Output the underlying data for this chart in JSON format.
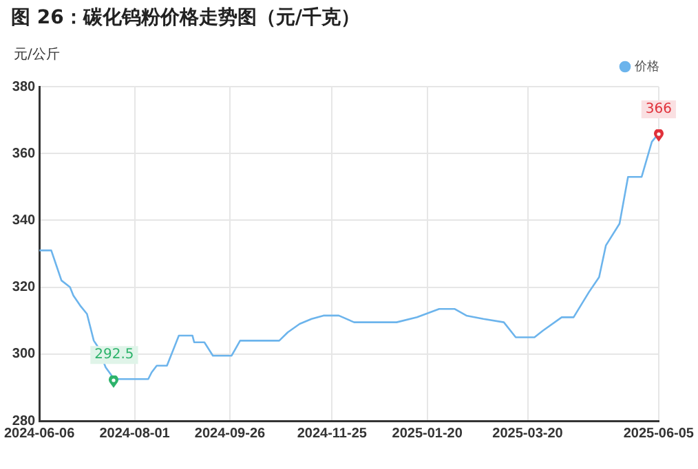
{
  "chart_data": {
    "type": "line",
    "title": "图 26：碳化钨粉价格走势图（元/千克）",
    "ylabel": "元/公斤",
    "x": [
      "2024-06-06",
      "2024-06-13",
      "2024-06-16",
      "2024-06-19",
      "2024-06-24",
      "2024-06-26",
      "2024-06-30",
      "2024-07-04",
      "2024-07-08",
      "2024-07-10",
      "2024-07-15",
      "2024-07-20",
      "2024-08-09",
      "2024-08-11",
      "2024-08-14",
      "2024-08-20",
      "2024-08-27",
      "2024-09-04",
      "2024-09-05",
      "2024-09-11",
      "2024-09-16",
      "2024-09-27",
      "2024-10-02",
      "2024-10-25",
      "2024-10-30",
      "2024-11-06",
      "2024-11-13",
      "2024-11-20",
      "2024-11-29",
      "2024-12-08",
      "2025-01-02",
      "2025-01-14",
      "2025-01-27",
      "2025-02-05",
      "2025-02-12",
      "2025-02-22",
      "2025-03-06",
      "2025-03-13",
      "2025-03-24",
      "2025-03-29",
      "2025-04-09",
      "2025-04-16",
      "2025-04-25",
      "2025-05-01",
      "2025-05-05",
      "2025-05-13",
      "2025-05-18",
      "2025-05-26",
      "2025-06-01",
      "2025-06-05"
    ],
    "series": [
      {
        "name": "价格",
        "color": "#6cb4ec",
        "values": [
          331,
          331,
          326.5,
          322,
          320,
          317.5,
          314.5,
          312,
          304,
          302.5,
          296,
          292.5,
          292.5,
          294.5,
          296.5,
          296.5,
          305.5,
          305.5,
          303.5,
          303.5,
          299.5,
          299.5,
          304,
          304,
          306.5,
          309,
          310.5,
          311.5,
          311.5,
          309.5,
          309.5,
          311,
          313.5,
          313.5,
          311.5,
          310.5,
          309.5,
          305,
          305,
          307,
          311,
          311,
          318.5,
          323,
          332.5,
          339,
          353,
          353,
          363.5,
          366
        ]
      }
    ],
    "xlim": [
      "2024-06-06",
      "2025-06-05"
    ],
    "xticks": [
      "2024-06-06",
      "2024-08-01",
      "2024-09-26",
      "2024-11-25",
      "2025-01-20",
      "2025-03-20",
      "2025-06-05"
    ],
    "ylim": [
      280,
      380
    ],
    "yticks": [
      280,
      300,
      320,
      340,
      360,
      380
    ],
    "grid": true,
    "legend": "top right",
    "marker": "none",
    "line_style": "solid",
    "annotations": [
      {
        "text": "292.5",
        "x": "2024-07-20",
        "y": 292.5
      },
      {
        "text": "366",
        "x": "2025-06-05",
        "y": 366
      }
    ]
  }
}
